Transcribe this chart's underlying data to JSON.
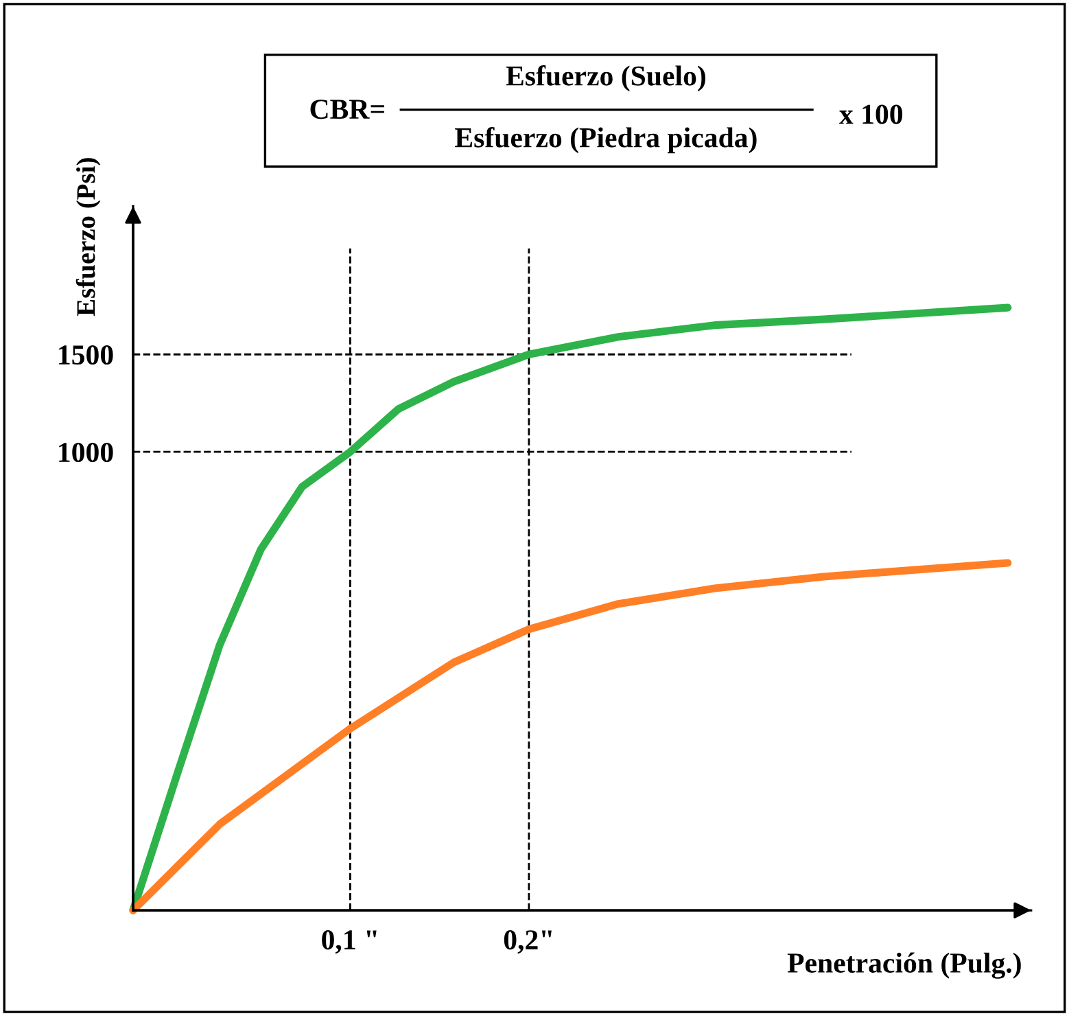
{
  "chart_data": {
    "type": "line",
    "xlabel": "Penetración (Pulg.)",
    "ylabel": "Esfuerzo (Psi)",
    "annotations": [
      "CBR=",
      "Esfuerzo (Suelo)",
      "Esfuerzo (Piedra picada)",
      "x 100"
    ],
    "xlim": [
      -0.0215,
      0.481
    ],
    "ylim": [
      -1352,
      2260
    ],
    "xticks": [
      {
        "value": 0.1,
        "label": "0,1 \""
      },
      {
        "value": 0.2,
        "label": "0,2\""
      }
    ],
    "yticks": [
      1000,
      1500
    ],
    "grid": false,
    "legend": false,
    "line_style": "solid",
    "marker": "none",
    "ref_lines": [
      {
        "axis": "x",
        "value": 0.1,
        "line_style": "dashed",
        "color": "#000000"
      },
      {
        "axis": "x",
        "value": 0.2,
        "line_style": "dashed",
        "color": "#000000"
      },
      {
        "axis": "y",
        "value": 1000,
        "line_style": "dashed",
        "color": "#000000"
      },
      {
        "axis": "y",
        "value": 1500,
        "line_style": "dashed",
        "color": "#000000"
      }
    ],
    "series": [
      {
        "color": "#2db34a",
        "x": [
          -0.0215,
          0.004,
          0.027,
          0.05,
          0.073,
          0.1,
          0.127,
          0.158,
          0.2,
          0.25,
          0.304,
          0.365,
          0.468
        ],
        "values": [
          -1352,
          -630,
          10,
          500,
          820,
          1000,
          1220,
          1360,
          1500,
          1590,
          1650,
          1680,
          1740
        ]
      },
      {
        "color": "#ff7f27",
        "x": [
          -0.0215,
          0.027,
          0.1,
          0.158,
          0.2,
          0.25,
          0.304,
          0.365,
          0.468
        ],
        "values": [
          -1352,
          -910,
          -420,
          -80,
          90,
          220,
          300,
          360,
          430
        ]
      }
    ]
  }
}
